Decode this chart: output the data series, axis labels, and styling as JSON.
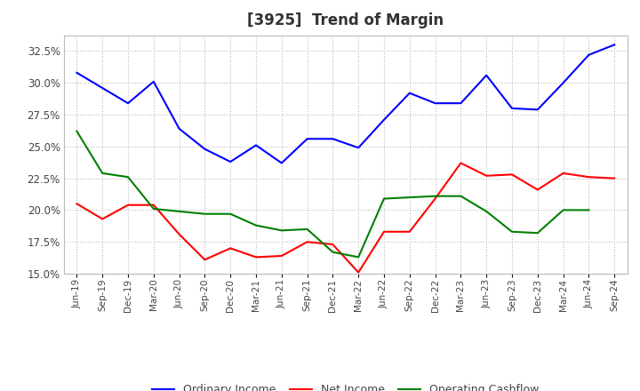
{
  "title": "[3925]  Trend of Margin",
  "x_labels": [
    "Jun-19",
    "Sep-19",
    "Dec-19",
    "Mar-20",
    "Jun-20",
    "Sep-20",
    "Dec-20",
    "Mar-21",
    "Jun-21",
    "Sep-21",
    "Dec-21",
    "Mar-22",
    "Jun-22",
    "Sep-22",
    "Dec-22",
    "Mar-23",
    "Jun-23",
    "Sep-23",
    "Dec-23",
    "Mar-24",
    "Jun-24",
    "Sep-24"
  ],
  "ordinary_income": [
    0.308,
    0.296,
    0.284,
    0.301,
    0.264,
    0.248,
    0.238,
    0.251,
    0.237,
    0.256,
    0.256,
    0.249,
    0.271,
    0.292,
    0.284,
    0.284,
    0.306,
    0.28,
    0.279,
    0.3,
    0.322,
    0.33
  ],
  "net_income": [
    0.205,
    0.193,
    0.204,
    0.204,
    0.181,
    0.161,
    0.17,
    0.163,
    0.164,
    0.175,
    0.173,
    0.151,
    0.183,
    0.183,
    0.209,
    0.237,
    0.227,
    0.228,
    0.216,
    0.229,
    0.226,
    0.225
  ],
  "operating_cashflow": [
    0.262,
    0.229,
    0.226,
    0.201,
    0.199,
    0.197,
    0.197,
    0.188,
    0.184,
    0.185,
    0.167,
    0.163,
    0.209,
    0.21,
    0.211,
    0.211,
    0.199,
    0.183,
    0.182,
    0.2,
    0.2,
    null
  ],
  "ordinary_income_color": "#0000FF",
  "net_income_color": "#FF0000",
  "operating_cashflow_color": "#008000",
  "ylim_min": 0.15,
  "ylim_max": 0.3375,
  "yticks": [
    0.15,
    0.175,
    0.2,
    0.225,
    0.25,
    0.275,
    0.3,
    0.325
  ],
  "background_color": "#FFFFFF",
  "grid_color": "#BBBBBB",
  "title_fontsize": 12,
  "title_color": "#333333",
  "tick_label_color": "#444444",
  "legend_labels": [
    "Ordinary Income",
    "Net Income",
    "Operating Cashflow"
  ]
}
